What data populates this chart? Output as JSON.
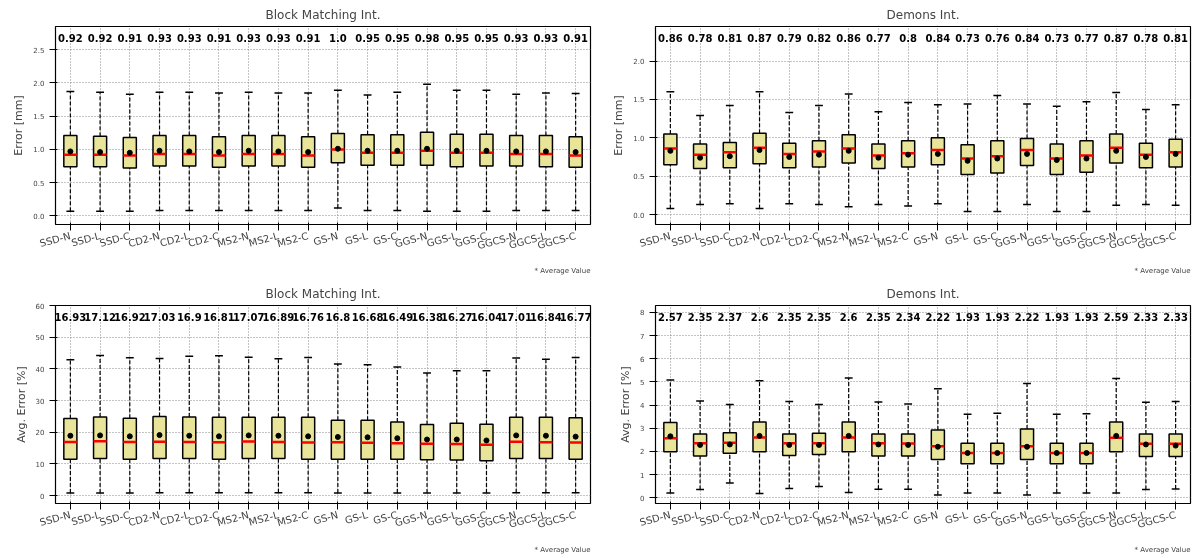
{
  "chart_data": [
    {
      "type": "box",
      "title": "Block Matching Int.",
      "ylabel": "Error [mm]",
      "categories": [
        "SSD-N",
        "SSD-L",
        "SSD-C",
        "CD2-N",
        "CD2-L",
        "CD2-C",
        "MS2-N",
        "MS2-L",
        "MS2-C",
        "GS-N",
        "GS-L",
        "GS-C",
        "GGS-N",
        "GGS-L",
        "GGS-C",
        "GGCS-N",
        "GGCS-L",
        "GGCS-C"
      ],
      "ylim": [
        -0.13,
        2.85
      ],
      "yticks": [
        {
          "value": 0,
          "label": "0.0"
        },
        {
          "value": 0.5,
          "label": "0.5"
        },
        {
          "value": 1,
          "label": "1.0"
        },
        {
          "value": 1.5,
          "label": "1.5"
        },
        {
          "value": 2,
          "label": "2.0"
        },
        {
          "value": 2.5,
          "label": "2.5"
        }
      ],
      "grid": true,
      "color": "#e8e49a",
      "annotations": [
        "* Average Value"
      ],
      "value_labels": [
        "0.92",
        "0.92",
        "0.91",
        "0.93",
        "0.93",
        "0.91",
        "0.93",
        "0.93",
        "0.91",
        "1.0",
        "0.95",
        "0.95",
        "0.98",
        "0.95",
        "0.95",
        "0.93",
        "0.93",
        "0.91"
      ],
      "boxes": [
        {
          "low": 0.07,
          "q1": 0.74,
          "median": 0.92,
          "q3": 1.21,
          "high": 1.87,
          "mean": 0.97
        },
        {
          "low": 0.07,
          "q1": 0.74,
          "median": 0.92,
          "q3": 1.2,
          "high": 1.86,
          "mean": 0.96
        },
        {
          "low": 0.07,
          "q1": 0.72,
          "median": 0.91,
          "q3": 1.18,
          "high": 1.83,
          "mean": 0.95
        },
        {
          "low": 0.08,
          "q1": 0.75,
          "median": 0.93,
          "q3": 1.21,
          "high": 1.86,
          "mean": 0.98
        },
        {
          "low": 0.08,
          "q1": 0.75,
          "median": 0.93,
          "q3": 1.21,
          "high": 1.86,
          "mean": 0.97
        },
        {
          "low": 0.08,
          "q1": 0.73,
          "median": 0.91,
          "q3": 1.19,
          "high": 1.85,
          "mean": 0.96
        },
        {
          "low": 0.08,
          "q1": 0.75,
          "median": 0.93,
          "q3": 1.21,
          "high": 1.86,
          "mean": 0.98
        },
        {
          "low": 0.08,
          "q1": 0.75,
          "median": 0.93,
          "q3": 1.21,
          "high": 1.85,
          "mean": 0.97
        },
        {
          "low": 0.08,
          "q1": 0.73,
          "median": 0.91,
          "q3": 1.19,
          "high": 1.85,
          "mean": 0.96
        },
        {
          "low": 0.12,
          "q1": 0.8,
          "median": 1.0,
          "q3": 1.24,
          "high": 1.89,
          "mean": 1.01
        },
        {
          "low": 0.08,
          "q1": 0.76,
          "median": 0.95,
          "q3": 1.22,
          "high": 1.82,
          "mean": 0.98
        },
        {
          "low": 0.08,
          "q1": 0.76,
          "median": 0.95,
          "q3": 1.22,
          "high": 1.86,
          "mean": 0.98
        },
        {
          "low": 0.07,
          "q1": 0.76,
          "median": 0.98,
          "q3": 1.26,
          "high": 1.98,
          "mean": 1.01
        },
        {
          "low": 0.07,
          "q1": 0.74,
          "median": 0.95,
          "q3": 1.23,
          "high": 1.89,
          "mean": 0.98
        },
        {
          "low": 0.07,
          "q1": 0.75,
          "median": 0.95,
          "q3": 1.23,
          "high": 1.89,
          "mean": 0.98
        },
        {
          "low": 0.08,
          "q1": 0.75,
          "median": 0.93,
          "q3": 1.21,
          "high": 1.83,
          "mean": 0.97
        },
        {
          "low": 0.08,
          "q1": 0.74,
          "median": 0.93,
          "q3": 1.21,
          "high": 1.85,
          "mean": 0.97
        },
        {
          "low": 0.08,
          "q1": 0.73,
          "median": 0.91,
          "q3": 1.19,
          "high": 1.84,
          "mean": 0.96
        }
      ]
    },
    {
      "type": "box",
      "title": "Demons Int.",
      "ylabel": "Error [mm]",
      "categories": [
        "SSD-N",
        "SSD-L",
        "SSD-C",
        "CD2-N",
        "CD2-L",
        "CD2-C",
        "MS2-N",
        "MS2-L",
        "MS2-C",
        "GS-N",
        "GS-L",
        "GS-C",
        "GGS-N",
        "GGS-L",
        "GGS-C",
        "GGCS-N",
        "GGCS-L",
        "GGCS-C"
      ],
      "ylim": [
        -0.13,
        2.45
      ],
      "yticks": [
        {
          "value": 0,
          "label": "0.0"
        },
        {
          "value": 0.5,
          "label": "0.5"
        },
        {
          "value": 1,
          "label": "1.0"
        },
        {
          "value": 1.5,
          "label": "1.5"
        },
        {
          "value": 2,
          "label": "2.0"
        }
      ],
      "grid": true,
      "color": "#e8e49a",
      "annotations": [
        "* Average Value"
      ],
      "value_labels": [
        "0.86",
        "0.78",
        "0.81",
        "0.87",
        "0.79",
        "0.82",
        "0.86",
        "0.77",
        "0.8",
        "0.84",
        "0.73",
        "0.76",
        "0.84",
        "0.73",
        "0.77",
        "0.87",
        "0.78",
        "0.81"
      ],
      "boxes": [
        {
          "low": 0.08,
          "q1": 0.65,
          "median": 0.86,
          "q3": 1.05,
          "high": 1.6,
          "mean": 0.83
        },
        {
          "low": 0.13,
          "q1": 0.6,
          "median": 0.78,
          "q3": 0.92,
          "high": 1.29,
          "mean": 0.74
        },
        {
          "low": 0.14,
          "q1": 0.61,
          "median": 0.81,
          "q3": 0.94,
          "high": 1.42,
          "mean": 0.76
        },
        {
          "low": 0.08,
          "q1": 0.66,
          "median": 0.87,
          "q3": 1.06,
          "high": 1.6,
          "mean": 0.84
        },
        {
          "low": 0.14,
          "q1": 0.61,
          "median": 0.79,
          "q3": 0.93,
          "high": 1.33,
          "mean": 0.75
        },
        {
          "low": 0.13,
          "q1": 0.62,
          "median": 0.82,
          "q3": 0.96,
          "high": 1.42,
          "mean": 0.78
        },
        {
          "low": 0.1,
          "q1": 0.67,
          "median": 0.86,
          "q3": 1.04,
          "high": 1.57,
          "mean": 0.83
        },
        {
          "low": 0.13,
          "q1": 0.6,
          "median": 0.77,
          "q3": 0.92,
          "high": 1.34,
          "mean": 0.74
        },
        {
          "low": 0.11,
          "q1": 0.62,
          "median": 0.8,
          "q3": 0.96,
          "high": 1.46,
          "mean": 0.78
        },
        {
          "low": 0.14,
          "q1": 0.65,
          "median": 0.84,
          "q3": 1.0,
          "high": 1.43,
          "mean": 0.79
        },
        {
          "low": 0.04,
          "q1": 0.52,
          "median": 0.73,
          "q3": 0.91,
          "high": 1.44,
          "mean": 0.7
        },
        {
          "low": 0.04,
          "q1": 0.54,
          "median": 0.76,
          "q3": 0.96,
          "high": 1.55,
          "mean": 0.73
        },
        {
          "low": 0.13,
          "q1": 0.64,
          "median": 0.84,
          "q3": 0.99,
          "high": 1.44,
          "mean": 0.79
        },
        {
          "low": 0.04,
          "q1": 0.52,
          "median": 0.73,
          "q3": 0.92,
          "high": 1.41,
          "mean": 0.71
        },
        {
          "low": 0.04,
          "q1": 0.55,
          "median": 0.77,
          "q3": 0.96,
          "high": 1.47,
          "mean": 0.73
        },
        {
          "low": 0.12,
          "q1": 0.67,
          "median": 0.87,
          "q3": 1.05,
          "high": 1.59,
          "mean": 0.83
        },
        {
          "low": 0.13,
          "q1": 0.61,
          "median": 0.78,
          "q3": 0.93,
          "high": 1.37,
          "mean": 0.75
        },
        {
          "low": 0.12,
          "q1": 0.62,
          "median": 0.81,
          "q3": 0.98,
          "high": 1.43,
          "mean": 0.79
        }
      ]
    },
    {
      "type": "box",
      "title": "Block Matching Int.",
      "ylabel": "Avg. Error [%]",
      "categories": [
        "SSD-N",
        "SSD-L",
        "SSD-C",
        "CD2-N",
        "CD2-L",
        "CD2-C",
        "MS2-N",
        "MS2-L",
        "MS2-C",
        "GS-N",
        "GS-L",
        "GS-C",
        "GGS-N",
        "GGS-L",
        "GGS-C",
        "GGCS-N",
        "GGCS-L",
        "GGCS-C"
      ],
      "ylim": [
        -2.5,
        60
      ],
      "yticks": [
        0,
        10,
        20,
        30,
        40,
        50,
        60
      ],
      "grid": true,
      "color": "#e8e49a",
      "annotations": [
        "* Average Value"
      ],
      "value_labels": [
        "16.93",
        "17.12",
        "16.92",
        "17.03",
        "16.9",
        "16.81",
        "17.07",
        "16.89",
        "16.76",
        "16.8",
        "16.68",
        "16.49",
        "16.38",
        "16.27",
        "16.04",
        "17.01",
        "16.84",
        "16.77"
      ],
      "boxes": [
        {
          "low": 0.8,
          "q1": 11.5,
          "median": 16.93,
          "q3": 24.3,
          "high": 42.9,
          "mean": 18.9
        },
        {
          "low": 0.8,
          "q1": 11.7,
          "median": 17.12,
          "q3": 24.8,
          "high": 44.2,
          "mean": 19.0
        },
        {
          "low": 0.8,
          "q1": 11.5,
          "median": 16.92,
          "q3": 24.4,
          "high": 43.5,
          "mean": 18.7
        },
        {
          "low": 0.9,
          "q1": 11.7,
          "median": 17.03,
          "q3": 25.0,
          "high": 43.3,
          "mean": 19.1
        },
        {
          "low": 0.9,
          "q1": 11.7,
          "median": 16.9,
          "q3": 24.8,
          "high": 44.0,
          "mean": 18.9
        },
        {
          "low": 0.9,
          "q1": 11.5,
          "median": 16.81,
          "q3": 24.7,
          "high": 44.1,
          "mean": 18.7
        },
        {
          "low": 0.9,
          "q1": 11.7,
          "median": 17.07,
          "q3": 24.7,
          "high": 43.7,
          "mean": 19.0
        },
        {
          "low": 0.9,
          "q1": 11.7,
          "median": 16.89,
          "q3": 24.7,
          "high": 43.2,
          "mean": 18.9
        },
        {
          "low": 0.9,
          "q1": 11.5,
          "median": 16.76,
          "q3": 24.7,
          "high": 43.6,
          "mean": 18.7
        },
        {
          "low": 0.8,
          "q1": 11.5,
          "median": 16.8,
          "q3": 23.8,
          "high": 41.5,
          "mean": 18.5
        },
        {
          "low": 0.8,
          "q1": 11.5,
          "median": 16.68,
          "q3": 23.8,
          "high": 41.3,
          "mean": 18.4
        },
        {
          "low": 0.8,
          "q1": 11.5,
          "median": 16.49,
          "q3": 23.2,
          "high": 40.6,
          "mean": 18.1
        },
        {
          "low": 0.8,
          "q1": 11.3,
          "median": 16.38,
          "q3": 22.4,
          "high": 38.7,
          "mean": 17.7
        },
        {
          "low": 0.8,
          "q1": 11.2,
          "median": 16.27,
          "q3": 22.8,
          "high": 39.4,
          "mean": 17.7
        },
        {
          "low": 0.8,
          "q1": 11.0,
          "median": 16.04,
          "q3": 22.5,
          "high": 39.4,
          "mean": 17.4
        },
        {
          "low": 0.9,
          "q1": 11.7,
          "median": 17.01,
          "q3": 24.7,
          "high": 43.4,
          "mean": 19.0
        },
        {
          "low": 0.9,
          "q1": 11.7,
          "median": 16.84,
          "q3": 24.7,
          "high": 43.0,
          "mean": 18.9
        },
        {
          "low": 0.9,
          "q1": 11.5,
          "median": 16.77,
          "q3": 24.6,
          "high": 43.6,
          "mean": 18.6
        }
      ]
    },
    {
      "type": "box",
      "title": "Demons Int.",
      "ylabel": "Avg. Error [%]",
      "categories": [
        "SSD-N",
        "SSD-L",
        "SSD-C",
        "CD2-N",
        "CD2-L",
        "CD2-C",
        "MS2-N",
        "MS2-L",
        "MS2-C",
        "GS-N",
        "GS-L",
        "GS-C",
        "GGS-N",
        "GGS-L",
        "GGS-C",
        "GGCS-N",
        "GGCS-L",
        "GGCS-C"
      ],
      "ylim": [
        -0.25,
        8.3
      ],
      "yticks": [
        0,
        1,
        2,
        3,
        4,
        5,
        6,
        7,
        8
      ],
      "grid": true,
      "color": "#e8e49a",
      "annotations": [
        "* Average Value"
      ],
      "value_labels": [
        "2.57",
        "2.35",
        "2.37",
        "2.6",
        "2.35",
        "2.35",
        "2.6",
        "2.35",
        "2.34",
        "2.22",
        "1.93",
        "1.93",
        "2.22",
        "1.93",
        "1.93",
        "2.59",
        "2.33",
        "2.33"
      ],
      "boxes": [
        {
          "low": 0.2,
          "q1": 1.98,
          "median": 2.57,
          "q3": 3.25,
          "high": 5.08,
          "mean": 2.65
        },
        {
          "low": 0.35,
          "q1": 1.8,
          "median": 2.35,
          "q3": 2.75,
          "high": 4.18,
          "mean": 2.28
        },
        {
          "low": 0.63,
          "q1": 1.92,
          "median": 2.37,
          "q3": 2.8,
          "high": 4.03,
          "mean": 2.3
        },
        {
          "low": 0.18,
          "q1": 1.98,
          "median": 2.6,
          "q3": 3.27,
          "high": 5.05,
          "mean": 2.67
        },
        {
          "low": 0.4,
          "q1": 1.82,
          "median": 2.35,
          "q3": 2.75,
          "high": 4.15,
          "mean": 2.28
        },
        {
          "low": 0.48,
          "q1": 1.87,
          "median": 2.35,
          "q3": 2.78,
          "high": 4.03,
          "mean": 2.28
        },
        {
          "low": 0.22,
          "q1": 1.98,
          "median": 2.6,
          "q3": 3.27,
          "high": 5.17,
          "mean": 2.67
        },
        {
          "low": 0.36,
          "q1": 1.8,
          "median": 2.35,
          "q3": 2.75,
          "high": 4.13,
          "mean": 2.3
        },
        {
          "low": 0.36,
          "q1": 1.8,
          "median": 2.34,
          "q3": 2.75,
          "high": 4.05,
          "mean": 2.28
        },
        {
          "low": 0.12,
          "q1": 1.65,
          "median": 2.22,
          "q3": 2.92,
          "high": 4.7,
          "mean": 2.2
        },
        {
          "low": 0.2,
          "q1": 1.47,
          "median": 1.93,
          "q3": 2.35,
          "high": 3.6,
          "mean": 1.93
        },
        {
          "low": 0.2,
          "q1": 1.47,
          "median": 1.93,
          "q3": 2.35,
          "high": 3.65,
          "mean": 1.93
        },
        {
          "low": 0.12,
          "q1": 1.65,
          "median": 2.22,
          "q3": 2.97,
          "high": 4.93,
          "mean": 2.2
        },
        {
          "low": 0.2,
          "q1": 1.47,
          "median": 1.93,
          "q3": 2.35,
          "high": 3.6,
          "mean": 1.93
        },
        {
          "low": 0.2,
          "q1": 1.47,
          "median": 1.93,
          "q3": 2.35,
          "high": 3.63,
          "mean": 1.93
        },
        {
          "low": 0.2,
          "q1": 1.98,
          "median": 2.59,
          "q3": 3.27,
          "high": 5.15,
          "mean": 2.67
        },
        {
          "low": 0.35,
          "q1": 1.78,
          "median": 2.33,
          "q3": 2.75,
          "high": 4.12,
          "mean": 2.3
        },
        {
          "low": 0.38,
          "q1": 1.78,
          "median": 2.33,
          "q3": 2.75,
          "high": 4.15,
          "mean": 2.25
        }
      ]
    }
  ]
}
